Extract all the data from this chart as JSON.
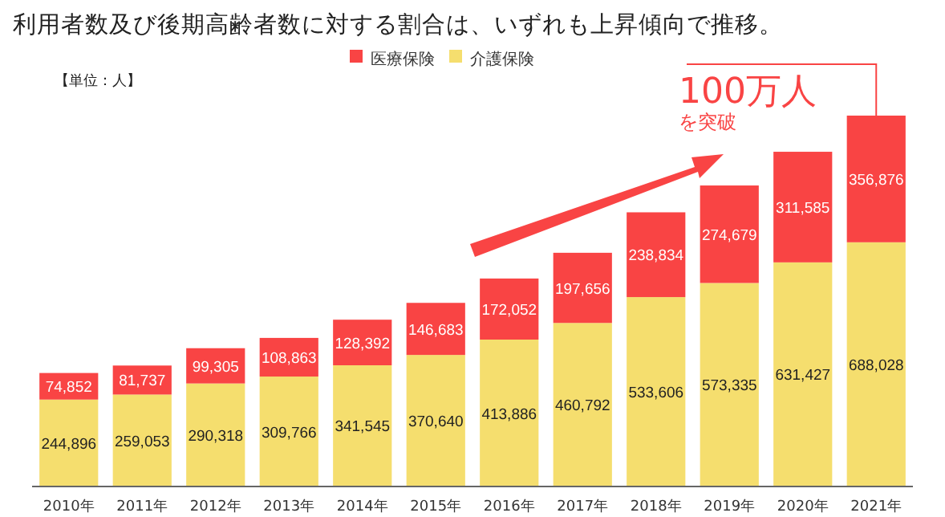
{
  "chart_data": {
    "type": "bar",
    "title": "利用者数及び後期高齢者数に対する割合は、いずれも上昇傾向で推移。",
    "categories": [
      "2010年",
      "2011年",
      "2012年",
      "2013年",
      "2014年",
      "2015年",
      "2016年",
      "2017年",
      "2018年",
      "2019年",
      "2020年",
      "2021年"
    ],
    "stacked": true,
    "legend": "top",
    "grid": false,
    "series": [
      {
        "name": "介護保険",
        "color": "#f5de6e",
        "values": [
          244896,
          259053,
          290318,
          309766,
          341545,
          370640,
          413886,
          460792,
          533606,
          573335,
          631427,
          688028
        ],
        "value_labels": [
          "244,896",
          "259,053",
          "290,318",
          "309,766",
          "341,545",
          "370,640",
          "413,886",
          "460,792",
          "533,606",
          "573,335",
          "631,427",
          "688,028"
        ]
      },
      {
        "name": "医療保険",
        "color": "#f94444",
        "values": [
          74852,
          81737,
          99305,
          108863,
          128392,
          146683,
          172052,
          197656,
          238834,
          274679,
          311585,
          356876
        ],
        "value_labels": [
          "74,852",
          "81,737",
          "99,305",
          "108,863",
          "128,392",
          "146,683",
          "172,052",
          "197,656",
          "238,834",
          "274,679",
          "311,585",
          "356,876"
        ]
      }
    ],
    "annotations": [
      "【単位：人】",
      "100万人",
      "を突破"
    ]
  }
}
